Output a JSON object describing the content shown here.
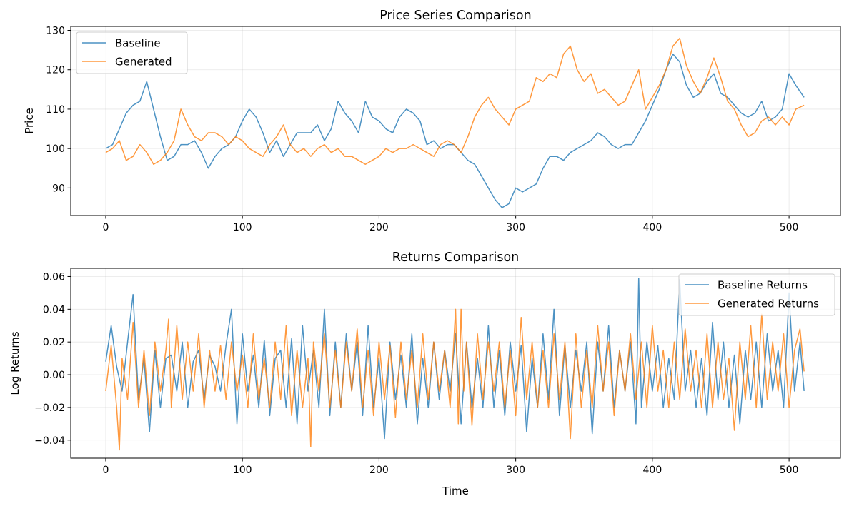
{
  "chart_data": [
    {
      "type": "line",
      "title": "Price Series Comparison",
      "xlabel": "",
      "ylabel": "Price",
      "xlim": [
        -25.6,
        537.6
      ],
      "ylim": [
        83,
        131
      ],
      "xticks": [
        0,
        100,
        200,
        300,
        400,
        500
      ],
      "yticks": [
        90,
        100,
        110,
        120,
        130
      ],
      "grid": true,
      "legend_position": "top-left",
      "series": [
        {
          "name": "Baseline",
          "color": "#1f77b4",
          "x": [
            0,
            5,
            10,
            15,
            20,
            25,
            30,
            35,
            40,
            45,
            50,
            55,
            60,
            65,
            70,
            75,
            80,
            85,
            90,
            95,
            100,
            105,
            110,
            115,
            120,
            125,
            130,
            135,
            140,
            145,
            150,
            155,
            160,
            165,
            170,
            175,
            180,
            185,
            190,
            195,
            200,
            205,
            210,
            215,
            220,
            225,
            230,
            235,
            240,
            245,
            250,
            255,
            260,
            265,
            270,
            275,
            280,
            285,
            290,
            295,
            300,
            305,
            310,
            315,
            320,
            325,
            330,
            335,
            340,
            345,
            350,
            355,
            360,
            365,
            370,
            375,
            380,
            385,
            390,
            395,
            400,
            405,
            410,
            415,
            420,
            425,
            430,
            435,
            440,
            445,
            450,
            455,
            460,
            465,
            470,
            475,
            480,
            485,
            490,
            495,
            500,
            505,
            511
          ],
          "values": [
            100,
            101,
            105,
            109,
            111,
            112,
            117,
            110,
            103,
            97,
            98,
            101,
            101,
            102,
            99,
            95,
            98,
            100,
            101,
            103,
            107,
            110,
            108,
            104,
            99,
            102,
            98,
            101,
            104,
            104,
            104,
            106,
            102,
            105,
            112,
            109,
            107,
            104,
            112,
            108,
            107,
            105,
            104,
            108,
            110,
            109,
            107,
            101,
            102,
            100,
            101,
            101,
            99,
            97,
            96,
            93,
            90,
            87,
            85,
            86,
            90,
            89,
            90,
            91,
            95,
            98,
            98,
            97,
            99,
            100,
            101,
            102,
            104,
            103,
            101,
            100,
            101,
            101,
            104,
            107,
            111,
            115,
            120,
            124,
            122,
            116,
            113,
            114,
            117,
            119,
            114,
            113,
            111,
            109,
            108,
            109,
            112,
            107,
            108,
            110,
            119,
            116,
            113
          ]
        },
        {
          "name": "Generated",
          "color": "#ff7f0e",
          "x": [
            0,
            5,
            10,
            15,
            20,
            25,
            30,
            35,
            40,
            45,
            50,
            55,
            60,
            65,
            70,
            75,
            80,
            85,
            90,
            95,
            100,
            105,
            110,
            115,
            120,
            125,
            130,
            135,
            140,
            145,
            150,
            155,
            160,
            165,
            170,
            175,
            180,
            185,
            190,
            195,
            200,
            205,
            210,
            215,
            220,
            225,
            230,
            235,
            240,
            245,
            250,
            255,
            260,
            265,
            270,
            275,
            280,
            285,
            290,
            295,
            300,
            305,
            310,
            315,
            320,
            325,
            330,
            335,
            340,
            345,
            350,
            355,
            360,
            365,
            370,
            375,
            380,
            385,
            390,
            395,
            400,
            405,
            410,
            415,
            420,
            425,
            430,
            435,
            440,
            445,
            450,
            455,
            460,
            465,
            470,
            475,
            480,
            485,
            490,
            495,
            500,
            505,
            511
          ],
          "values": [
            99,
            100,
            102,
            97,
            98,
            101,
            99,
            96,
            97,
            99,
            102,
            110,
            106,
            103,
            102,
            104,
            104,
            103,
            101,
            103,
            102,
            100,
            99,
            98,
            101,
            103,
            106,
            101,
            99,
            100,
            98,
            100,
            101,
            99,
            100,
            98,
            98,
            97,
            96,
            97,
            98,
            100,
            99,
            100,
            100,
            101,
            100,
            99,
            98,
            101,
            102,
            101,
            99,
            103,
            108,
            111,
            113,
            110,
            108,
            106,
            110,
            111,
            112,
            118,
            117,
            119,
            118,
            124,
            126,
            120,
            117,
            119,
            114,
            115,
            113,
            111,
            112,
            116,
            120,
            110,
            113,
            116,
            120,
            126,
            128,
            121,
            117,
            114,
            118,
            123,
            118,
            112,
            110,
            106,
            103,
            104,
            107,
            108,
            106,
            108,
            106,
            110,
            111
          ]
        }
      ]
    },
    {
      "type": "line",
      "title": "Returns Comparison",
      "xlabel": "Time",
      "ylabel": "Log Returns",
      "xlim": [
        -25.6,
        537.6
      ],
      "ylim": [
        -0.051,
        0.065
      ],
      "xticks": [
        0,
        100,
        200,
        300,
        400,
        500
      ],
      "yticks": [
        -0.04,
        -0.02,
        0.0,
        0.02,
        0.04,
        0.06
      ],
      "ytick_labels": [
        "−0.04",
        "−0.02",
        "0.00",
        "0.02",
        "0.04",
        "0.06"
      ],
      "grid": true,
      "legend_position": "top-right",
      "series": [
        {
          "name": "Baseline Returns",
          "color": "#1f77b4",
          "x": [
            0,
            4,
            8,
            12,
            16,
            20,
            24,
            28,
            32,
            36,
            40,
            44,
            48,
            52,
            56,
            60,
            64,
            68,
            72,
            76,
            80,
            84,
            88,
            92,
            96,
            100,
            104,
            108,
            112,
            116,
            120,
            124,
            128,
            132,
            136,
            140,
            144,
            148,
            152,
            156,
            160,
            164,
            168,
            172,
            176,
            180,
            184,
            188,
            192,
            196,
            200,
            204,
            208,
            212,
            216,
            220,
            224,
            228,
            232,
            236,
            240,
            244,
            248,
            252,
            256,
            260,
            264,
            268,
            272,
            276,
            280,
            284,
            288,
            292,
            296,
            300,
            304,
            308,
            312,
            316,
            320,
            324,
            328,
            332,
            336,
            340,
            344,
            348,
            352,
            356,
            360,
            364,
            368,
            372,
            376,
            380,
            384,
            388,
            390,
            392,
            396,
            400,
            404,
            408,
            412,
            416,
            420,
            424,
            428,
            432,
            436,
            440,
            444,
            448,
            452,
            456,
            460,
            464,
            468,
            472,
            476,
            480,
            484,
            488,
            492,
            496,
            500,
            504,
            508,
            511
          ],
          "values": [
            0.008,
            0.03,
            0.005,
            -0.01,
            0.02,
            0.049,
            -0.015,
            0.01,
            -0.035,
            0.015,
            -0.02,
            0.01,
            0.012,
            -0.01,
            0.02,
            -0.02,
            0.008,
            0.015,
            -0.015,
            0.012,
            0.005,
            -0.01,
            0.018,
            0.04,
            -0.03,
            0.025,
            -0.01,
            0.012,
            -0.02,
            0.021,
            -0.025,
            0.01,
            0.015,
            -0.02,
            0.022,
            -0.03,
            0.03,
            -0.01,
            0.015,
            -0.02,
            0.04,
            -0.025,
            0.02,
            -0.02,
            0.025,
            -0.01,
            0.02,
            -0.025,
            0.03,
            -0.02,
            0.01,
            -0.039,
            0.02,
            -0.015,
            0.012,
            -0.02,
            0.025,
            -0.03,
            0.01,
            -0.02,
            0.02,
            -0.015,
            0.015,
            -0.01,
            0.025,
            -0.03,
            0.02,
            -0.02,
            0.01,
            -0.02,
            0.03,
            -0.02,
            0.015,
            -0.025,
            0.02,
            -0.01,
            0.018,
            -0.035,
            0.01,
            -0.02,
            0.025,
            -0.015,
            0.04,
            -0.025,
            0.018,
            -0.02,
            0.015,
            -0.01,
            0.02,
            -0.036,
            0.02,
            -0.01,
            0.03,
            -0.02,
            0.015,
            -0.01,
            0.02,
            -0.03,
            0.059,
            -0.02,
            0.02,
            -0.01,
            0.018,
            -0.02,
            0.01,
            -0.015,
            0.058,
            -0.01,
            0.015,
            -0.02,
            0.01,
            -0.025,
            0.032,
            -0.015,
            0.02,
            -0.02,
            0.012,
            -0.03,
            0.015,
            -0.015,
            0.02,
            -0.02,
            0.025,
            -0.01,
            0.015,
            -0.02,
            0.05,
            -0.01,
            0.02,
            -0.01
          ]
        },
        {
          "name": "Generated Returns",
          "color": "#ff7f0e",
          "x": [
            0,
            4,
            8,
            10,
            12,
            16,
            20,
            24,
            28,
            32,
            36,
            40,
            44,
            46,
            48,
            52,
            56,
            60,
            64,
            68,
            72,
            76,
            80,
            84,
            88,
            92,
            96,
            100,
            104,
            108,
            112,
            116,
            120,
            124,
            128,
            132,
            136,
            140,
            144,
            148,
            150,
            152,
            156,
            160,
            164,
            168,
            172,
            176,
            180,
            184,
            188,
            192,
            196,
            200,
            204,
            208,
            212,
            216,
            220,
            224,
            228,
            232,
            236,
            240,
            244,
            248,
            252,
            256,
            258,
            260,
            262,
            264,
            268,
            272,
            276,
            280,
            284,
            288,
            292,
            296,
            300,
            304,
            308,
            312,
            316,
            320,
            324,
            328,
            332,
            336,
            340,
            344,
            348,
            352,
            356,
            360,
            364,
            368,
            372,
            376,
            380,
            384,
            388,
            392,
            396,
            400,
            404,
            408,
            412,
            416,
            420,
            424,
            428,
            432,
            436,
            440,
            444,
            448,
            452,
            456,
            460,
            464,
            468,
            472,
            476,
            480,
            484,
            488,
            492,
            496,
            500,
            504,
            508,
            511
          ],
          "values": [
            -0.01,
            0.018,
            -0.02,
            -0.046,
            0.01,
            -0.015,
            0.032,
            -0.02,
            0.015,
            -0.025,
            0.02,
            -0.01,
            0.015,
            0.034,
            -0.02,
            0.03,
            -0.015,
            0.02,
            -0.01,
            0.025,
            -0.02,
            0.015,
            -0.01,
            0.018,
            -0.015,
            0.02,
            -0.01,
            0.012,
            -0.02,
            0.025,
            -0.015,
            0.01,
            -0.02,
            0.02,
            -0.015,
            0.03,
            -0.025,
            0.015,
            -0.02,
            0.01,
            -0.044,
            0.02,
            -0.01,
            0.025,
            -0.02,
            0.015,
            -0.02,
            0.02,
            -0.01,
            0.028,
            -0.02,
            0.015,
            -0.025,
            0.02,
            -0.015,
            0.018,
            -0.026,
            0.02,
            -0.015,
            0.015,
            -0.02,
            0.025,
            -0.015,
            0.02,
            -0.01,
            0.015,
            -0.02,
            0.04,
            -0.03,
            0.04,
            -0.01,
            0.02,
            -0.031,
            0.025,
            -0.015,
            0.02,
            -0.01,
            0.02,
            -0.02,
            0.015,
            -0.025,
            0.035,
            -0.015,
            0.02,
            -0.02,
            0.015,
            -0.02,
            0.025,
            -0.015,
            0.02,
            -0.039,
            0.025,
            -0.02,
            0.015,
            -0.02,
            0.03,
            -0.01,
            0.02,
            -0.025,
            0.015,
            -0.01,
            0.025,
            -0.015,
            0.02,
            -0.02,
            0.03,
            -0.01,
            0.015,
            -0.02,
            0.02,
            -0.015,
            0.028,
            -0.01,
            0.015,
            -0.02,
            0.025,
            -0.02,
            0.02,
            -0.015,
            0.01,
            -0.034,
            0.02,
            -0.015,
            0.03,
            -0.02,
            0.037,
            -0.015,
            0.02,
            -0.01,
            0.025,
            -0.02,
            0.015,
            0.028,
            0.002
          ]
        }
      ]
    }
  ]
}
